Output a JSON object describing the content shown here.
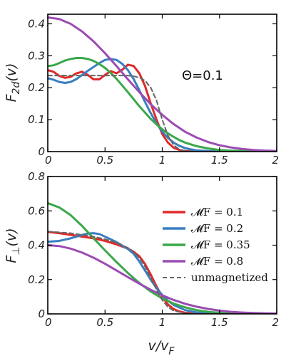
{
  "chart_data": [
    {
      "type": "line",
      "ylabel_main": "F",
      "ylabel_sub": "2d",
      "ylabel_arg": "(v)",
      "annotation": "Θ=0.1",
      "xlim": [
        0,
        2
      ],
      "ylim": [
        0,
        0.43
      ],
      "xticks": [
        0,
        0.5,
        1,
        1.5,
        2
      ],
      "xtick_labels": [
        "0",
        "0.5",
        "1",
        "1.5",
        "2"
      ],
      "yticks": [
        0,
        0.1,
        0.2,
        0.3,
        0.4
      ],
      "ytick_labels": [
        "0",
        "0.1",
        "0.2",
        "0.3",
        "0.4"
      ],
      "series": [
        {
          "color": "#e02a2a",
          "dashed": false,
          "x": [
            0,
            0.05,
            0.1,
            0.15,
            0.2,
            0.25,
            0.3,
            0.35,
            0.4,
            0.45,
            0.5,
            0.55,
            0.6,
            0.65,
            0.7,
            0.75,
            0.8,
            0.85,
            0.9,
            0.95,
            1.0,
            1.05,
            1.1,
            1.15,
            1.2,
            1.25,
            1.3,
            2.0
          ],
          "y": [
            0.255,
            0.25,
            0.237,
            0.231,
            0.234,
            0.245,
            0.25,
            0.24,
            0.226,
            0.226,
            0.24,
            0.252,
            0.245,
            0.256,
            0.272,
            0.268,
            0.245,
            0.205,
            0.15,
            0.1,
            0.055,
            0.028,
            0.012,
            0.005,
            0.002,
            0.001,
            0,
            0
          ]
        },
        {
          "color": "#3a7ec0",
          "dashed": false,
          "x": [
            0,
            0.05,
            0.1,
            0.15,
            0.2,
            0.25,
            0.3,
            0.35,
            0.4,
            0.45,
            0.5,
            0.55,
            0.6,
            0.65,
            0.7,
            0.75,
            0.8,
            0.85,
            0.9,
            0.95,
            1.0,
            1.05,
            1.1,
            1.15,
            1.2,
            1.25,
            1.3,
            1.4,
            1.5,
            2.0
          ],
          "y": [
            0.23,
            0.225,
            0.218,
            0.215,
            0.218,
            0.227,
            0.24,
            0.253,
            0.265,
            0.277,
            0.287,
            0.29,
            0.287,
            0.275,
            0.255,
            0.227,
            0.192,
            0.155,
            0.12,
            0.088,
            0.063,
            0.043,
            0.028,
            0.018,
            0.011,
            0.007,
            0.004,
            0.002,
            0.001,
            0
          ]
        },
        {
          "color": "#3aa84a",
          "dashed": false,
          "x": [
            0,
            0.05,
            0.1,
            0.15,
            0.2,
            0.25,
            0.3,
            0.35,
            0.4,
            0.45,
            0.5,
            0.55,
            0.6,
            0.65,
            0.7,
            0.75,
            0.8,
            0.85,
            0.9,
            0.95,
            1.0,
            1.05,
            1.1,
            1.15,
            1.2,
            1.3,
            1.4,
            1.5,
            1.6,
            1.8,
            2.0
          ],
          "y": [
            0.268,
            0.27,
            0.277,
            0.285,
            0.29,
            0.293,
            0.293,
            0.29,
            0.284,
            0.274,
            0.262,
            0.246,
            0.228,
            0.207,
            0.186,
            0.164,
            0.142,
            0.122,
            0.102,
            0.085,
            0.07,
            0.057,
            0.046,
            0.036,
            0.028,
            0.017,
            0.01,
            0.005,
            0.003,
            0.001,
            0
          ]
        },
        {
          "color": "#9b4bb3",
          "dashed": false,
          "x": [
            0,
            0.1,
            0.2,
            0.3,
            0.4,
            0.5,
            0.6,
            0.7,
            0.8,
            0.9,
            1.0,
            1.1,
            1.2,
            1.3,
            1.4,
            1.5,
            1.6,
            1.7,
            1.8,
            1.9,
            2.0
          ],
          "y": [
            0.42,
            0.415,
            0.4,
            0.376,
            0.345,
            0.308,
            0.268,
            0.226,
            0.186,
            0.148,
            0.115,
            0.086,
            0.062,
            0.044,
            0.03,
            0.02,
            0.013,
            0.008,
            0.005,
            0.003,
            0.002
          ]
        },
        {
          "color": "#666666",
          "dashed": true,
          "x": [
            0,
            0.7,
            0.75,
            0.8,
            0.85,
            0.9,
            0.95,
            1.0,
            1.05,
            1.1,
            1.15,
            1.2,
            1.3,
            2.0
          ],
          "y": [
            0.238,
            0.238,
            0.236,
            0.232,
            0.222,
            0.2,
            0.16,
            0.1,
            0.05,
            0.02,
            0.007,
            0.002,
            0,
            0
          ]
        }
      ]
    },
    {
      "type": "line",
      "ylabel_main": "F",
      "ylabel_sub": "⊥",
      "ylabel_arg": "(v)",
      "xlabel_main": "v/v",
      "xlabel_sub": "F",
      "xlim": [
        0,
        2
      ],
      "ylim": [
        0,
        0.8
      ],
      "xticks": [
        0,
        0.5,
        1,
        1.5,
        2
      ],
      "xtick_labels": [
        "0",
        "0.5",
        "1",
        "1.5",
        "2"
      ],
      "yticks": [
        0,
        0.2,
        0.4,
        0.6,
        0.8
      ],
      "ytick_labels": [
        "0",
        "0.2",
        "0.4",
        "0.6",
        "0.8"
      ],
      "legend_position": "right",
      "series": [
        {
          "name": "𝓜F = 0.1",
          "color": "#e02a2a",
          "dashed": false,
          "x": [
            0,
            0.1,
            0.2,
            0.3,
            0.4,
            0.5,
            0.6,
            0.7,
            0.75,
            0.8,
            0.85,
            0.9,
            0.95,
            1.0,
            1.05,
            1.1,
            1.15,
            1.2,
            1.3,
            1.4,
            2.0
          ],
          "y": [
            0.478,
            0.47,
            0.46,
            0.45,
            0.44,
            0.425,
            0.405,
            0.38,
            0.362,
            0.335,
            0.29,
            0.228,
            0.16,
            0.1,
            0.055,
            0.028,
            0.014,
            0.007,
            0.002,
            0.001,
            0
          ]
        },
        {
          "name": "𝓜F = 0.2",
          "color": "#3a7ec0",
          "dashed": false,
          "x": [
            0,
            0.1,
            0.2,
            0.3,
            0.35,
            0.4,
            0.45,
            0.5,
            0.6,
            0.7,
            0.75,
            0.8,
            0.85,
            0.9,
            0.95,
            1.0,
            1.05,
            1.1,
            1.2,
            1.3,
            1.4,
            1.5,
            2.0
          ],
          "y": [
            0.42,
            0.425,
            0.44,
            0.46,
            0.468,
            0.47,
            0.465,
            0.45,
            0.418,
            0.378,
            0.35,
            0.305,
            0.252,
            0.198,
            0.15,
            0.11,
            0.077,
            0.052,
            0.022,
            0.009,
            0.004,
            0.001,
            0
          ]
        },
        {
          "name": "𝓜F = 0.35",
          "color": "#3aa84a",
          "dashed": false,
          "x": [
            0,
            0.1,
            0.2,
            0.3,
            0.4,
            0.5,
            0.6,
            0.7,
            0.8,
            0.9,
            1.0,
            1.1,
            1.2,
            1.3,
            1.4,
            1.5,
            1.6,
            1.8,
            2.0
          ],
          "y": [
            0.645,
            0.62,
            0.575,
            0.512,
            0.44,
            0.37,
            0.302,
            0.238,
            0.18,
            0.13,
            0.09,
            0.06,
            0.038,
            0.022,
            0.012,
            0.006,
            0.003,
            0.001,
            0
          ]
        },
        {
          "name": "𝓜F = 0.8",
          "color": "#9b4bb3",
          "dashed": false,
          "x": [
            0,
            0.1,
            0.2,
            0.3,
            0.4,
            0.5,
            0.6,
            0.7,
            0.8,
            0.9,
            1.0,
            1.1,
            1.2,
            1.3,
            1.4,
            1.5,
            1.6,
            1.7,
            1.8,
            1.9,
            2.0
          ],
          "y": [
            0.4,
            0.395,
            0.38,
            0.357,
            0.327,
            0.292,
            0.253,
            0.214,
            0.176,
            0.14,
            0.108,
            0.081,
            0.059,
            0.042,
            0.029,
            0.019,
            0.012,
            0.008,
            0.005,
            0.003,
            0.002
          ]
        },
        {
          "name": "unmagnetized",
          "color": "#666666",
          "dashed": true,
          "x": [
            0,
            0.2,
            0.4,
            0.5,
            0.6,
            0.7,
            0.75,
            0.8,
            0.85,
            0.9,
            0.95,
            1.0,
            1.05,
            1.1,
            1.2,
            1.3,
            2.0
          ],
          "y": [
            0.48,
            0.47,
            0.45,
            0.435,
            0.415,
            0.385,
            0.36,
            0.325,
            0.275,
            0.21,
            0.14,
            0.08,
            0.04,
            0.018,
            0.004,
            0.001,
            0
          ]
        }
      ]
    }
  ]
}
